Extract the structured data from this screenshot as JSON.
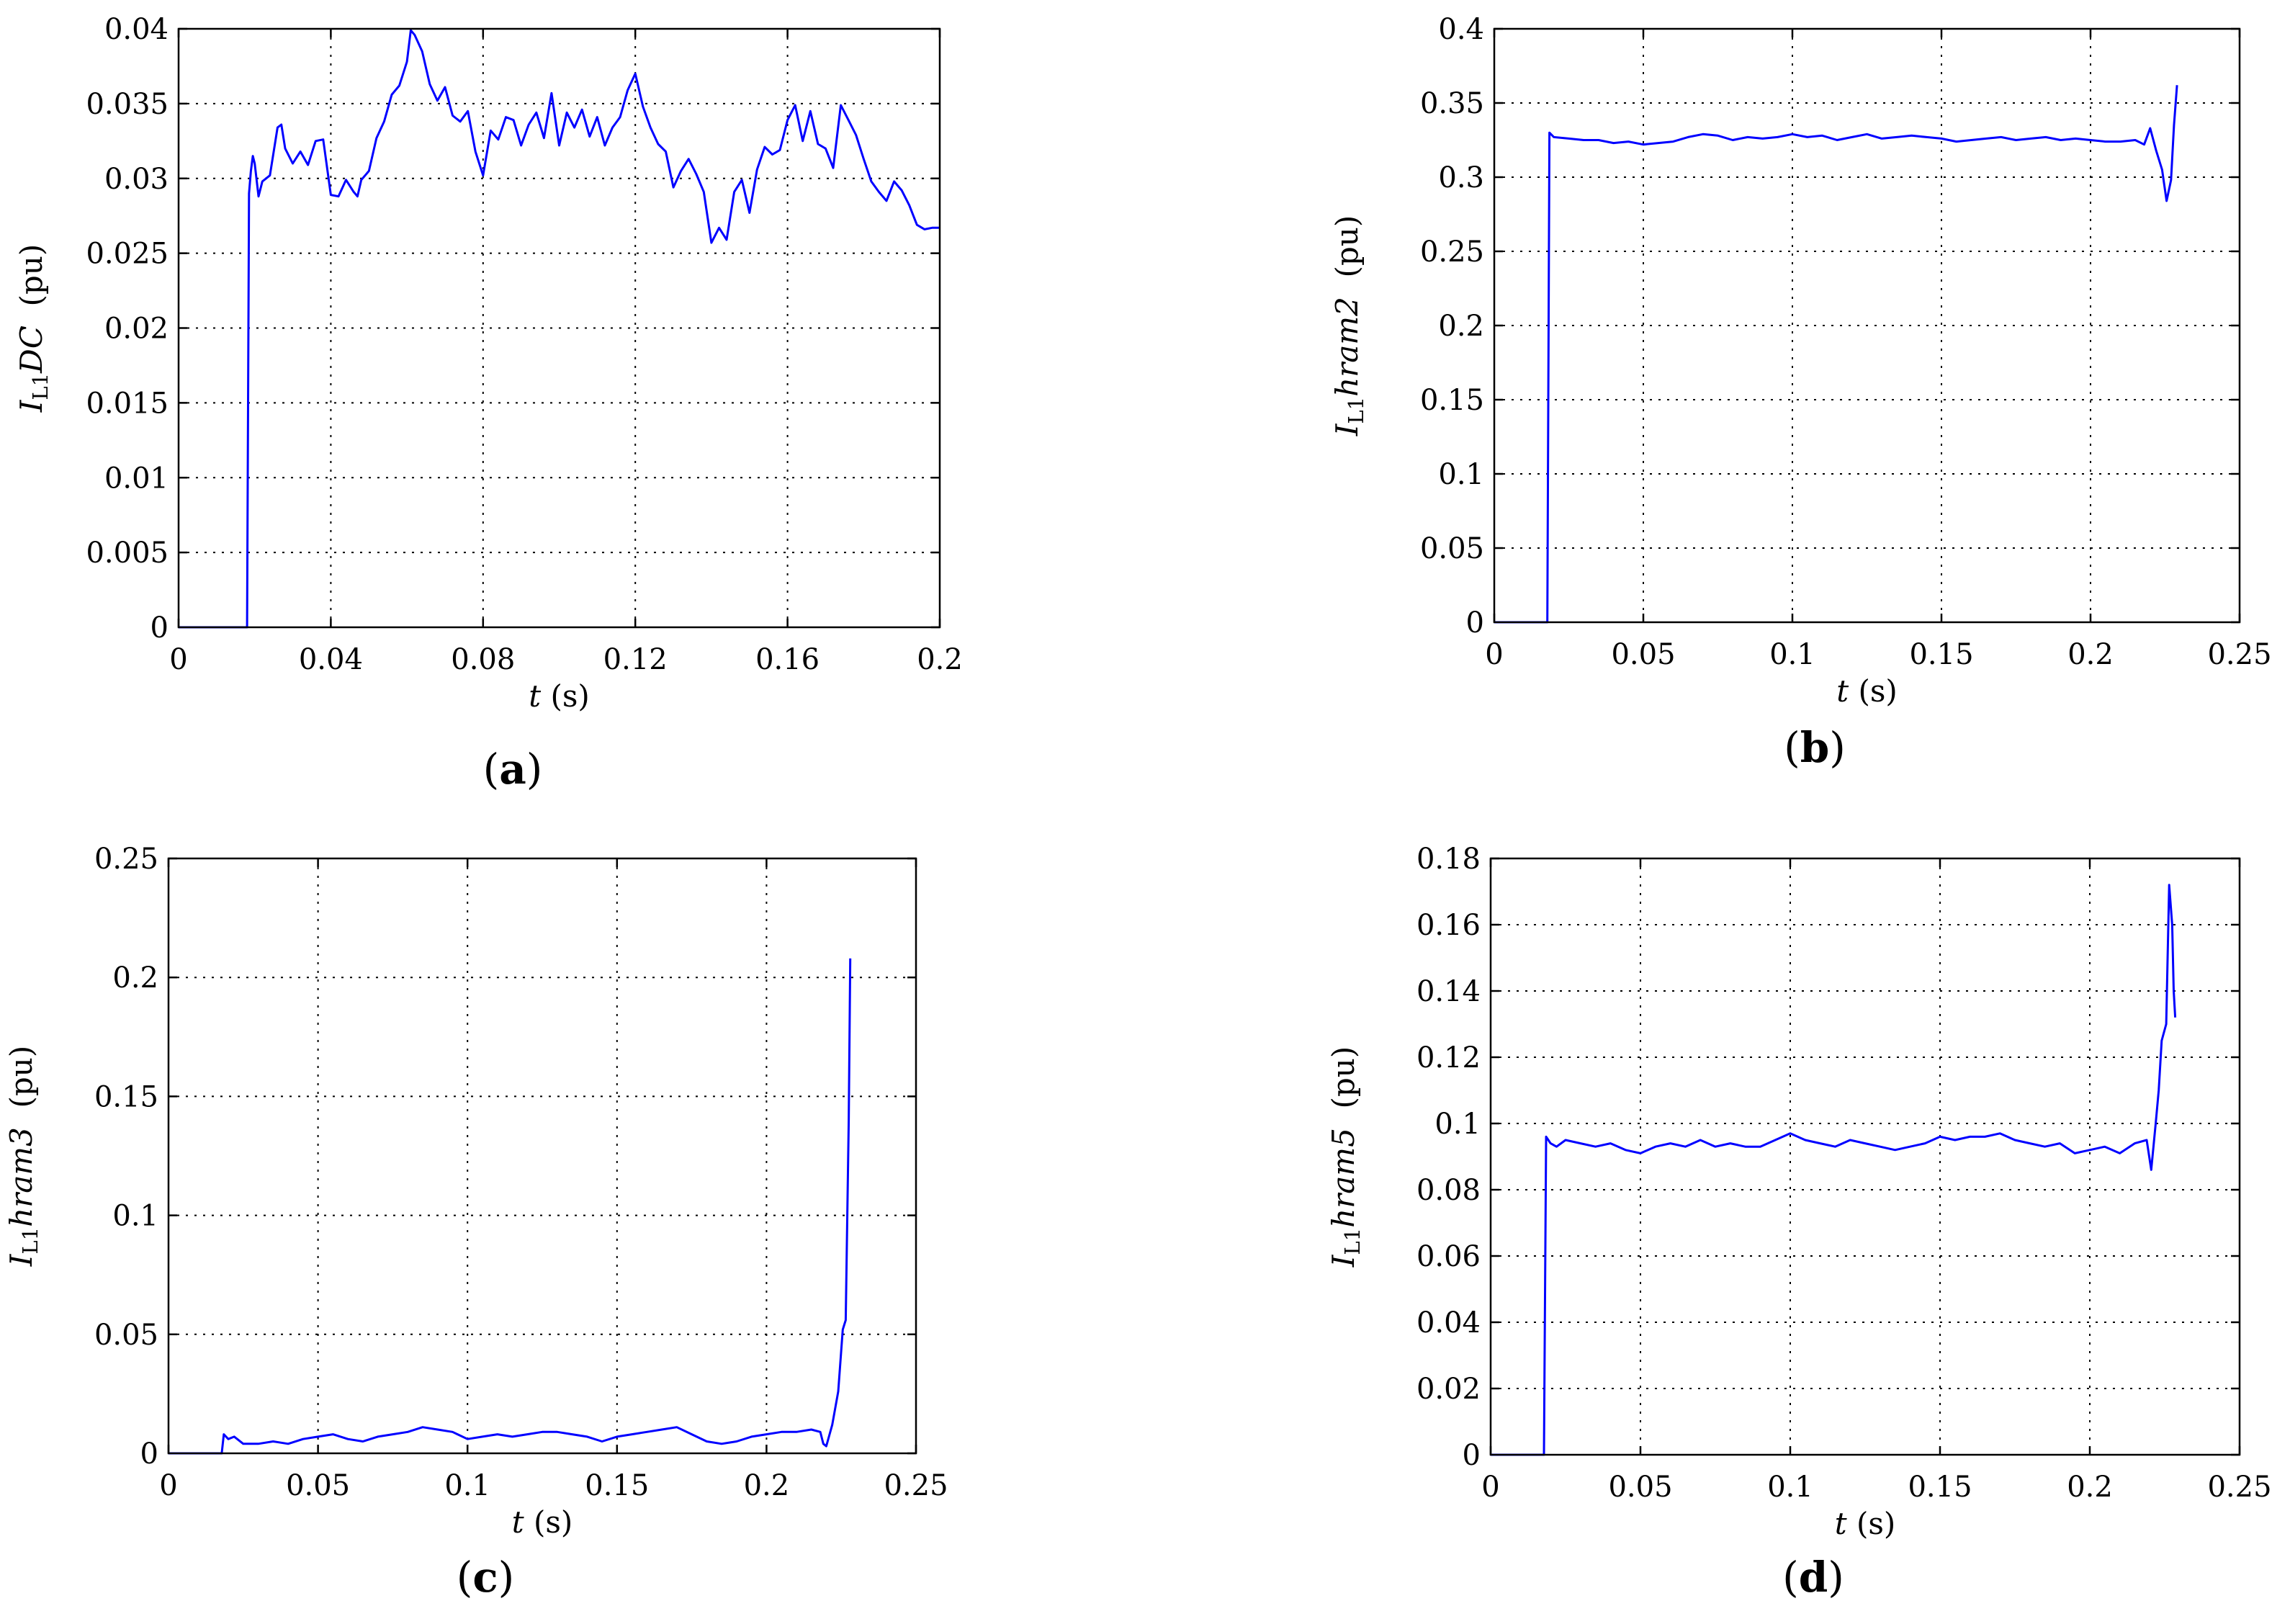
{
  "chart_data": [
    {
      "type": "line",
      "panel_label": "(a)",
      "panel_letter": "a",
      "xlabel": "t (s)",
      "xlabel_var": "t",
      "xlabel_unit": " (s)",
      "ylabel": "IL1DC (pu)",
      "ylabel_var": "I",
      "ylabel_sub": "L1",
      "ylabel_name": "DC",
      "ylabel_unit": "(pu)",
      "xlim": [
        0,
        0.2
      ],
      "ylim": [
        0,
        0.04
      ],
      "xticks": [
        "0",
        "0.04",
        "0.08",
        "0.12",
        "0.16",
        "0.2"
      ],
      "yticks": [
        "0",
        "0.005",
        "0.01",
        "0.015",
        "0.02",
        "0.025",
        "0.03",
        "0.035",
        "0.04"
      ],
      "grid": true,
      "color": "#0000ff",
      "series": [
        {
          "x": [
            0,
            0.018,
            0.0185,
            0.019,
            0.0195,
            0.02,
            0.021,
            0.022,
            0.024,
            0.026,
            0.027,
            0.028,
            0.03,
            0.032,
            0.034,
            0.036,
            0.038,
            0.04,
            0.042,
            0.044,
            0.046,
            0.047,
            0.048,
            0.05,
            0.052,
            0.054,
            0.056,
            0.058,
            0.06,
            0.061,
            0.062,
            0.064,
            0.066,
            0.068,
            0.07,
            0.072,
            0.074,
            0.076,
            0.078,
            0.08,
            0.082,
            0.084,
            0.086,
            0.088,
            0.09,
            0.092,
            0.094,
            0.096,
            0.098,
            0.1,
            0.102,
            0.104,
            0.106,
            0.108,
            0.11,
            0.112,
            0.114,
            0.116,
            0.118,
            0.12,
            0.122,
            0.124,
            0.126,
            0.128,
            0.13,
            0.132,
            0.134,
            0.136,
            0.138,
            0.14,
            0.142,
            0.144,
            0.146,
            0.148,
            0.15,
            0.152,
            0.154,
            0.156,
            0.158,
            0.16,
            0.162,
            0.164,
            0.166,
            0.168,
            0.17,
            0.172,
            0.174,
            0.176,
            0.178,
            0.18,
            0.182,
            0.184,
            0.186,
            0.188,
            0.19,
            0.192,
            0.194,
            0.196,
            0.198,
            0.2
          ],
          "y": [
            0,
            0,
            0.029,
            0.0305,
            0.0315,
            0.031,
            0.0288,
            0.0298,
            0.0302,
            0.0334,
            0.0336,
            0.032,
            0.031,
            0.0318,
            0.0309,
            0.0325,
            0.0326,
            0.0289,
            0.0288,
            0.0299,
            0.0291,
            0.0288,
            0.0299,
            0.0305,
            0.0327,
            0.0338,
            0.0356,
            0.0362,
            0.0378,
            0.0399,
            0.0396,
            0.0385,
            0.0363,
            0.0352,
            0.0361,
            0.0342,
            0.0338,
            0.0345,
            0.0318,
            0.0302,
            0.0332,
            0.0326,
            0.0341,
            0.0339,
            0.0322,
            0.0336,
            0.0344,
            0.0327,
            0.0357,
            0.0322,
            0.0344,
            0.0334,
            0.0346,
            0.0328,
            0.0341,
            0.0322,
            0.0334,
            0.0341,
            0.0359,
            0.037,
            0.0348,
            0.0334,
            0.0323,
            0.0318,
            0.0294,
            0.0305,
            0.0313,
            0.0303,
            0.0291,
            0.0257,
            0.0267,
            0.0259,
            0.0291,
            0.0299,
            0.0277,
            0.0306,
            0.0321,
            0.0316,
            0.0319,
            0.0339,
            0.0349,
            0.0325,
            0.0345,
            0.0323,
            0.032,
            0.0307,
            0.0349,
            0.0339,
            0.0329,
            0.0313,
            0.0298,
            0.0291,
            0.0285,
            0.0298,
            0.0292,
            0.0282,
            0.0269,
            0.0266,
            0.0267,
            0.0267
          ]
        }
      ]
    },
    {
      "type": "line",
      "panel_label": "(b)",
      "panel_letter": "b",
      "xlabel": "t (s)",
      "xlabel_var": "t",
      "xlabel_unit": " (s)",
      "ylabel": "IL1hram2 (pu)",
      "ylabel_var": "I",
      "ylabel_sub": "L1",
      "ylabel_name": "hram2",
      "ylabel_unit": "(pu)",
      "xlim": [
        0,
        0.25
      ],
      "ylim": [
        0,
        0.4
      ],
      "xticks": [
        "0",
        "0.05",
        "0.1",
        "0.15",
        "0.2",
        "0.25"
      ],
      "yticks": [
        "0",
        "0.05",
        "0.1",
        "0.15",
        "0.2",
        "0.25",
        "0.3",
        "0.35",
        "0.4"
      ],
      "grid": true,
      "color": "#0000ff",
      "series": [
        {
          "x": [
            0,
            0.0178,
            0.0185,
            0.02,
            0.025,
            0.03,
            0.035,
            0.04,
            0.045,
            0.05,
            0.055,
            0.06,
            0.065,
            0.07,
            0.075,
            0.08,
            0.085,
            0.09,
            0.095,
            0.1,
            0.105,
            0.11,
            0.115,
            0.12,
            0.125,
            0.13,
            0.135,
            0.14,
            0.145,
            0.15,
            0.155,
            0.16,
            0.165,
            0.17,
            0.175,
            0.18,
            0.185,
            0.19,
            0.195,
            0.2,
            0.205,
            0.21,
            0.215,
            0.218,
            0.22,
            0.222,
            0.224,
            0.2255,
            0.227,
            0.228,
            0.229
          ],
          "y": [
            0,
            0,
            0.33,
            0.327,
            0.326,
            0.325,
            0.325,
            0.323,
            0.324,
            0.322,
            0.323,
            0.324,
            0.327,
            0.329,
            0.328,
            0.325,
            0.327,
            0.326,
            0.327,
            0.329,
            0.327,
            0.328,
            0.325,
            0.327,
            0.329,
            0.326,
            0.327,
            0.328,
            0.327,
            0.326,
            0.324,
            0.325,
            0.326,
            0.327,
            0.325,
            0.326,
            0.327,
            0.325,
            0.326,
            0.325,
            0.324,
            0.324,
            0.325,
            0.322,
            0.333,
            0.318,
            0.305,
            0.284,
            0.298,
            0.335,
            0.362
          ]
        }
      ]
    },
    {
      "type": "line",
      "panel_label": "(c)",
      "panel_letter": "c",
      "xlabel": "t (s)",
      "xlabel_var": "t",
      "xlabel_unit": " (s)",
      "ylabel": "IL1hram3 (pu)",
      "ylabel_var": "I",
      "ylabel_sub": "L1",
      "ylabel_name": "hram3",
      "ylabel_unit": "(pu)",
      "xlim": [
        0,
        0.25
      ],
      "ylim": [
        0,
        0.25
      ],
      "xticks": [
        "0",
        "0.05",
        "0.1",
        "0.15",
        "0.2",
        "0.25"
      ],
      "yticks": [
        "0",
        "0.05",
        "0.1",
        "0.15",
        "0.2",
        "0.25"
      ],
      "grid": true,
      "color": "#0000ff",
      "series": [
        {
          "x": [
            0,
            0.0178,
            0.0185,
            0.02,
            0.022,
            0.025,
            0.03,
            0.035,
            0.04,
            0.045,
            0.05,
            0.055,
            0.06,
            0.065,
            0.07,
            0.075,
            0.08,
            0.085,
            0.09,
            0.095,
            0.1,
            0.105,
            0.11,
            0.115,
            0.12,
            0.125,
            0.13,
            0.135,
            0.14,
            0.145,
            0.15,
            0.155,
            0.16,
            0.165,
            0.17,
            0.175,
            0.18,
            0.185,
            0.19,
            0.195,
            0.2,
            0.205,
            0.21,
            0.215,
            0.218,
            0.219,
            0.22,
            0.222,
            0.224,
            0.2255,
            0.2265,
            0.2275,
            0.228
          ],
          "y": [
            0,
            0,
            0.008,
            0.006,
            0.007,
            0.004,
            0.004,
            0.005,
            0.004,
            0.006,
            0.007,
            0.008,
            0.006,
            0.005,
            0.007,
            0.008,
            0.009,
            0.011,
            0.01,
            0.009,
            0.006,
            0.007,
            0.008,
            0.007,
            0.008,
            0.009,
            0.009,
            0.008,
            0.007,
            0.005,
            0.007,
            0.008,
            0.009,
            0.01,
            0.011,
            0.008,
            0.005,
            0.004,
            0.005,
            0.007,
            0.008,
            0.009,
            0.009,
            0.01,
            0.009,
            0.004,
            0.003,
            0.012,
            0.026,
            0.052,
            0.056,
            0.14,
            0.208
          ]
        }
      ]
    },
    {
      "type": "line",
      "panel_label": "(d)",
      "panel_letter": "d",
      "xlabel": "t (s)",
      "xlabel_var": "t",
      "xlabel_unit": " (s)",
      "ylabel": "IL1hram5 (pu)",
      "ylabel_var": "I",
      "ylabel_sub": "L1",
      "ylabel_name": "hram5",
      "ylabel_unit": "(pu)",
      "xlim": [
        0,
        0.25
      ],
      "ylim": [
        0,
        0.18
      ],
      "xticks": [
        "0",
        "0.05",
        "0.1",
        "0.15",
        "0.2",
        "0.25"
      ],
      "yticks": [
        "0",
        "0.02",
        "0.04",
        "0.06",
        "0.08",
        "0.1",
        "0.12",
        "0.14",
        "0.16",
        "0.18"
      ],
      "grid": true,
      "color": "#0000ff",
      "series": [
        {
          "x": [
            0,
            0.0178,
            0.0185,
            0.02,
            0.022,
            0.025,
            0.03,
            0.035,
            0.04,
            0.045,
            0.05,
            0.055,
            0.06,
            0.065,
            0.07,
            0.075,
            0.08,
            0.085,
            0.09,
            0.095,
            0.1,
            0.105,
            0.11,
            0.115,
            0.12,
            0.125,
            0.13,
            0.135,
            0.14,
            0.145,
            0.15,
            0.155,
            0.16,
            0.165,
            0.17,
            0.175,
            0.18,
            0.185,
            0.19,
            0.195,
            0.2,
            0.205,
            0.21,
            0.215,
            0.219,
            0.2205,
            0.222,
            0.223,
            0.224,
            0.2255,
            0.2265,
            0.2275,
            0.228,
            0.2285
          ],
          "y": [
            0,
            0,
            0.096,
            0.094,
            0.093,
            0.095,
            0.094,
            0.093,
            0.094,
            0.092,
            0.091,
            0.093,
            0.094,
            0.093,
            0.095,
            0.093,
            0.094,
            0.093,
            0.093,
            0.095,
            0.097,
            0.095,
            0.094,
            0.093,
            0.095,
            0.094,
            0.093,
            0.092,
            0.093,
            0.094,
            0.096,
            0.095,
            0.096,
            0.096,
            0.097,
            0.095,
            0.094,
            0.093,
            0.094,
            0.091,
            0.092,
            0.093,
            0.091,
            0.094,
            0.095,
            0.086,
            0.1,
            0.11,
            0.125,
            0.13,
            0.172,
            0.16,
            0.14,
            0.132
          ]
        }
      ]
    }
  ]
}
